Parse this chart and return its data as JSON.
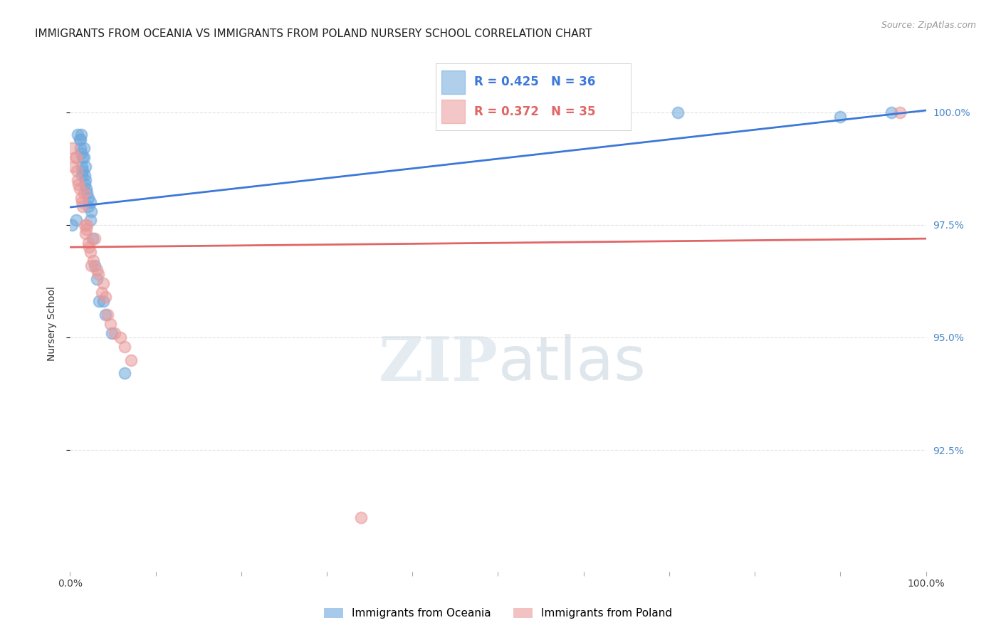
{
  "title": "IMMIGRANTS FROM OCEANIA VS IMMIGRANTS FROM POLAND NURSERY SCHOOL CORRELATION CHART",
  "source": "Source: ZipAtlas.com",
  "ylabel": "Nursery School",
  "xlim": [
    0.0,
    1.0
  ],
  "ylim": [
    0.898,
    1.008
  ],
  "yticks": [
    0.925,
    0.95,
    0.975,
    1.0
  ],
  "ytick_labels": [
    "92.5%",
    "95.0%",
    "97.5%",
    "100.0%"
  ],
  "xticks": [
    0.0,
    0.1,
    0.2,
    0.3,
    0.4,
    0.5,
    0.6,
    0.7,
    0.8,
    0.9,
    1.0
  ],
  "xtick_labels": [
    "0.0%",
    "",
    "",
    "",
    "",
    "",
    "",
    "",
    "",
    "",
    "100.0%"
  ],
  "series1_name": "Immigrants from Oceania",
  "series1_color": "#6fa8dc",
  "series1_R": 0.425,
  "series1_N": 36,
  "series1_x": [
    0.002,
    0.007,
    0.009,
    0.011,
    0.012,
    0.012,
    0.013,
    0.013,
    0.014,
    0.014,
    0.015,
    0.015,
    0.016,
    0.016,
    0.017,
    0.017,
    0.018,
    0.018,
    0.019,
    0.02,
    0.021,
    0.021,
    0.024,
    0.024,
    0.025,
    0.026,
    0.029,
    0.031,
    0.034,
    0.039,
    0.041,
    0.049,
    0.064,
    0.71,
    0.9,
    0.96
  ],
  "series1_y": [
    0.975,
    0.976,
    0.995,
    0.994,
    0.994,
    0.992,
    0.991,
    0.995,
    0.986,
    0.988,
    0.987,
    0.99,
    0.99,
    0.992,
    0.986,
    0.984,
    0.985,
    0.988,
    0.983,
    0.982,
    0.981,
    0.979,
    0.98,
    0.976,
    0.978,
    0.972,
    0.966,
    0.963,
    0.958,
    0.958,
    0.955,
    0.951,
    0.942,
    1.0,
    0.999,
    1.0
  ],
  "series2_name": "Immigrants from Poland",
  "series2_color": "#ea9999",
  "series2_R": 0.372,
  "series2_N": 35,
  "series2_x": [
    0.002,
    0.004,
    0.006,
    0.007,
    0.008,
    0.009,
    0.01,
    0.011,
    0.013,
    0.014,
    0.015,
    0.016,
    0.017,
    0.018,
    0.019,
    0.02,
    0.021,
    0.022,
    0.024,
    0.025,
    0.027,
    0.029,
    0.031,
    0.033,
    0.037,
    0.039,
    0.041,
    0.044,
    0.047,
    0.052,
    0.059,
    0.064,
    0.071,
    0.34,
    0.97
  ],
  "series2_y": [
    0.992,
    0.988,
    0.99,
    0.99,
    0.987,
    0.985,
    0.984,
    0.983,
    0.981,
    0.98,
    0.979,
    0.982,
    0.975,
    0.973,
    0.974,
    0.975,
    0.971,
    0.97,
    0.969,
    0.966,
    0.967,
    0.972,
    0.965,
    0.964,
    0.96,
    0.962,
    0.959,
    0.955,
    0.953,
    0.951,
    0.95,
    0.948,
    0.945,
    0.91,
    1.0
  ],
  "line1_color": "#3c78d8",
  "line2_color": "#e06666",
  "grid_color": "#e0e0e0",
  "background_color": "#ffffff",
  "title_fontsize": 11,
  "axis_fontsize": 10,
  "tick_fontsize": 10,
  "right_tick_color": "#4a86c8"
}
